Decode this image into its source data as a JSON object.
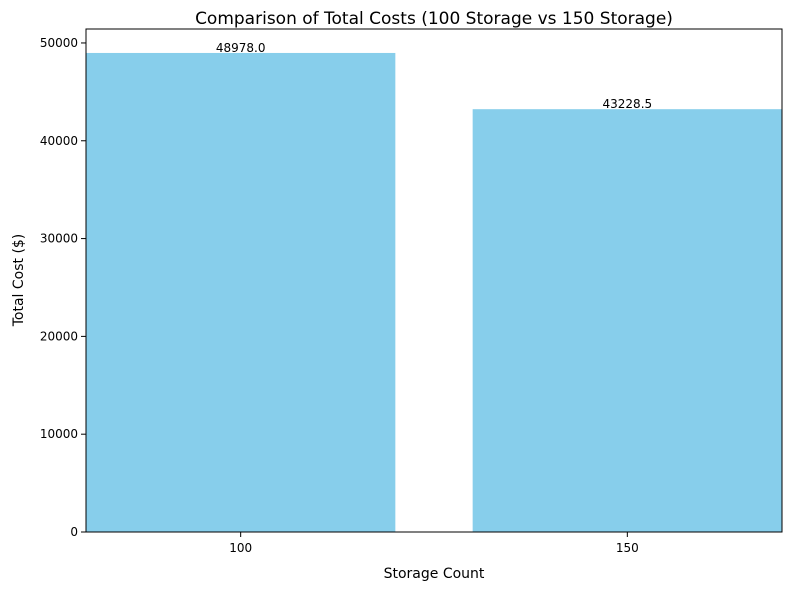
{
  "chart_data": {
    "type": "bar",
    "title": "Comparison of Total Costs (100 Storage vs 150 Storage)",
    "xlabel": "Storage Count",
    "ylabel": "Total Cost ($)",
    "categories": [
      "100",
      "150"
    ],
    "values": [
      48978.0,
      43228.5
    ],
    "value_labels": [
      "48978.0",
      "43228.5"
    ],
    "ylim": [
      0,
      51427
    ],
    "yticks": [
      0,
      10000,
      20000,
      30000,
      40000,
      50000
    ],
    "ytick_labels": [
      "0",
      "10000",
      "20000",
      "30000",
      "40000",
      "50000"
    ],
    "bar_color": "#87ceeb",
    "grid": false,
    "legend": "none"
  }
}
